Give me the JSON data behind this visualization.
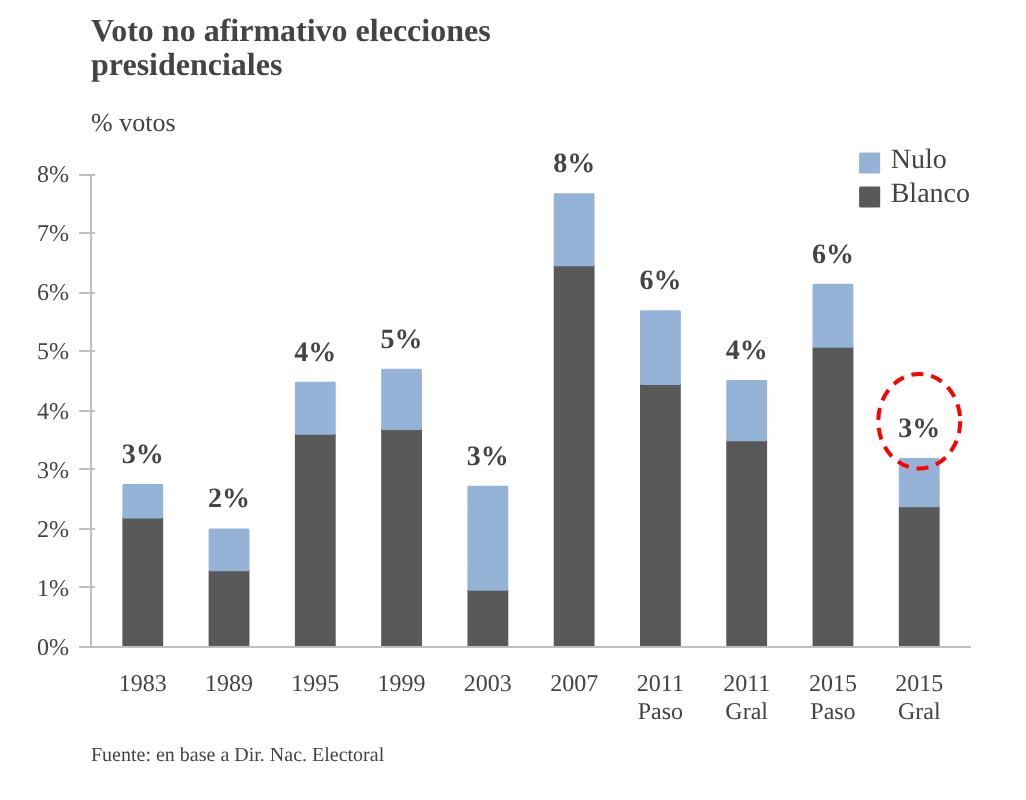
{
  "chart_data": {
    "type": "bar",
    "stacked": true,
    "title": "Voto no afirmativo elecciones presidenciales",
    "ylabel": "% votos",
    "categories": [
      "1983",
      "1989",
      "1995",
      "1999",
      "2003",
      "2007",
      "2011\nPaso",
      "2011\nGral",
      "2015\nPaso",
      "2015\nGral"
    ],
    "series": [
      {
        "name": "Blanco",
        "color": "#595959",
        "values": [
          2.19,
          1.3,
          3.61,
          3.69,
          0.97,
          6.46,
          4.45,
          3.5,
          5.08,
          2.38
        ]
      },
      {
        "name": "Nulo",
        "color": "#95b3d7",
        "values": [
          0.55,
          0.69,
          0.86,
          1.0,
          1.74,
          1.2,
          1.23,
          1.0,
          1.05,
          0.8
        ]
      }
    ],
    "totals": [
      "3%",
      "2%",
      "4%",
      "5%",
      "3%",
      "8%",
      "6%",
      "4%",
      "6%",
      "3%"
    ],
    "ylim": [
      0,
      8
    ],
    "yticks": [
      {
        "value": 0,
        "label": "0%"
      },
      {
        "value": 1,
        "label": "1%"
      },
      {
        "value": 2,
        "label": "2%"
      },
      {
        "value": 3,
        "label": "3%"
      },
      {
        "value": 4,
        "label": "4%"
      },
      {
        "value": 5,
        "label": "5%"
      },
      {
        "value": 6,
        "label": "6%"
      },
      {
        "value": 7,
        "label": "7%"
      },
      {
        "value": 8,
        "label": "8%"
      }
    ],
    "legend": "top right",
    "grid": false,
    "annotations": [
      "Fuente: en base a Dir. Nac. Electoral"
    ]
  }
}
